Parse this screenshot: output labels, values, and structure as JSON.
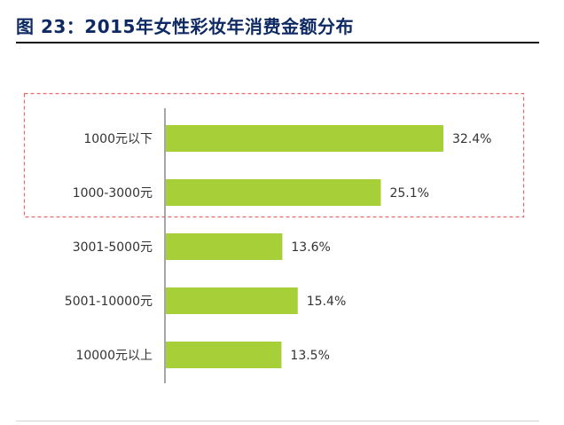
{
  "figure": {
    "title": "图 23：2015年女性彩妆年消费金额分布"
  },
  "colors": {
    "title": "#0f2a63",
    "bar": "#a7cf37",
    "highlight_border": "#e46a6a",
    "axis": "#888888",
    "text": "#333333"
  },
  "chart_data": {
    "type": "bar",
    "orientation": "horizontal",
    "title": "",
    "xlabel": "",
    "ylabel": "",
    "categories": [
      "1000元以下",
      "1000-3000元",
      "3001-5000元",
      "5001-10000元",
      "10000元以上"
    ],
    "series": [
      {
        "values": [
          32.4,
          25.1,
          13.6,
          15.4,
          13.5
        ]
      }
    ],
    "value_labels": [
      "32.4%",
      "25.1%",
      "13.6%",
      "15.4%",
      "13.5%"
    ],
    "xlim": [
      0,
      35
    ],
    "grid": false,
    "legend": "none",
    "highlight": {
      "style": "dashed",
      "category_indices": [
        0,
        1
      ]
    }
  }
}
